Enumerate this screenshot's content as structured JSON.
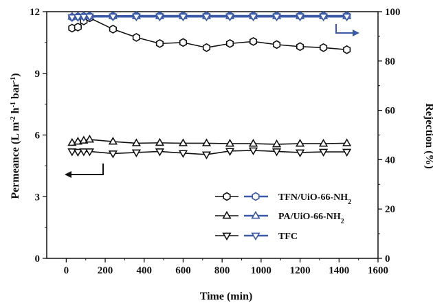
{
  "chart_data": {
    "type": "line",
    "xlabel": "Time (min)",
    "ylabel_left": "Permeance (L m-2 h-1 bar-1)",
    "ylabel_right": "Rejection (%)",
    "xlim": [
      -100,
      1600
    ],
    "ylim_left": [
      0,
      12
    ],
    "ylim_right": [
      0,
      100
    ],
    "xticks": [
      "0",
      "200",
      "400",
      "600",
      "800",
      "1000",
      "1200",
      "1400",
      "1600"
    ],
    "yticks_left": [
      "0",
      "3",
      "6",
      "9",
      "12"
    ],
    "yticks_right": [
      "0",
      "20",
      "40",
      "60",
      "80",
      "100"
    ],
    "legend_position": "bottom-right",
    "colors": {
      "permeance": "#111111",
      "rejection": "#3a5aa8"
    },
    "series": [
      {
        "name": "TFN/UiO-66-NH2",
        "marker": "hexagon",
        "permeance": {
          "x": [
            30,
            60,
            90,
            120,
            240,
            360,
            480,
            600,
            720,
            840,
            960,
            1080,
            1200,
            1320,
            1440
          ],
          "y": [
            11.2,
            11.25,
            11.55,
            11.7,
            11.15,
            10.75,
            10.45,
            10.5,
            10.25,
            10.45,
            10.55,
            10.4,
            10.3,
            10.25,
            10.15
          ]
        },
        "rejection": {
          "x": [
            30,
            60,
            90,
            120,
            240,
            360,
            480,
            600,
            720,
            840,
            960,
            1080,
            1200,
            1320,
            1440
          ],
          "y": [
            97.8,
            98.0,
            98.1,
            98.2,
            98.2,
            98.3,
            98.3,
            98.3,
            98.3,
            98.3,
            98.3,
            98.3,
            98.3,
            98.3,
            98.3
          ]
        }
      },
      {
        "name": "PA/UiO-66-NH2",
        "marker": "triangle-up",
        "permeance": {
          "x": [
            30,
            60,
            90,
            120,
            240,
            360,
            480,
            600,
            720,
            840,
            960,
            1080,
            1200,
            1320,
            1440
          ],
          "y": [
            5.62,
            5.68,
            5.73,
            5.78,
            5.68,
            5.6,
            5.62,
            5.6,
            5.6,
            5.58,
            5.58,
            5.55,
            5.58,
            5.58,
            5.6
          ]
        },
        "rejection": {
          "x": [
            30,
            60,
            90,
            120,
            240,
            360,
            480,
            600,
            720,
            840,
            960,
            1080,
            1200,
            1320,
            1440
          ],
          "y": [
            98.0,
            98.1,
            98.2,
            98.2,
            98.2,
            98.2,
            98.2,
            98.2,
            98.2,
            98.2,
            98.2,
            98.2,
            98.2,
            98.2,
            98.2
          ]
        }
      },
      {
        "name": "TFC",
        "marker": "triangle-down",
        "permeance": {
          "x": [
            30,
            60,
            90,
            120,
            240,
            360,
            480,
            600,
            720,
            840,
            960,
            1080,
            1200,
            1320,
            1440
          ],
          "y": [
            5.2,
            5.18,
            5.2,
            5.2,
            5.1,
            5.15,
            5.2,
            5.12,
            5.05,
            5.22,
            5.25,
            5.2,
            5.15,
            5.18,
            5.18
          ]
        },
        "rejection": {
          "x": [
            30,
            60,
            90,
            120,
            240,
            360,
            480,
            600,
            720,
            840,
            960,
            1080,
            1200,
            1320,
            1440
          ],
          "y": [
            97.7,
            97.8,
            97.9,
            98.0,
            98.0,
            98.0,
            98.0,
            98.0,
            98.0,
            98.0,
            98.0,
            98.0,
            98.0,
            98.0,
            98.0
          ]
        }
      }
    ],
    "legend": [
      {
        "label_main": "TFN/UiO-66-NH",
        "label_sub": "2",
        "marker": "hexagon"
      },
      {
        "label_main": "PA/UiO-66-NH",
        "label_sub": "2",
        "marker": "triangle-up"
      },
      {
        "label_main": "TFC",
        "label_sub": "",
        "marker": "triangle-down"
      }
    ],
    "ylabel_left_parts": [
      {
        "t": "Permeance (L m",
        "sup": false
      },
      {
        "t": "-2",
        "sup": true
      },
      {
        "t": " h",
        "sup": false
      },
      {
        "t": "-1",
        "sup": true
      },
      {
        "t": " bar",
        "sup": false
      },
      {
        "t": "-1",
        "sup": true
      },
      {
        "t": ")",
        "sup": false
      }
    ]
  }
}
